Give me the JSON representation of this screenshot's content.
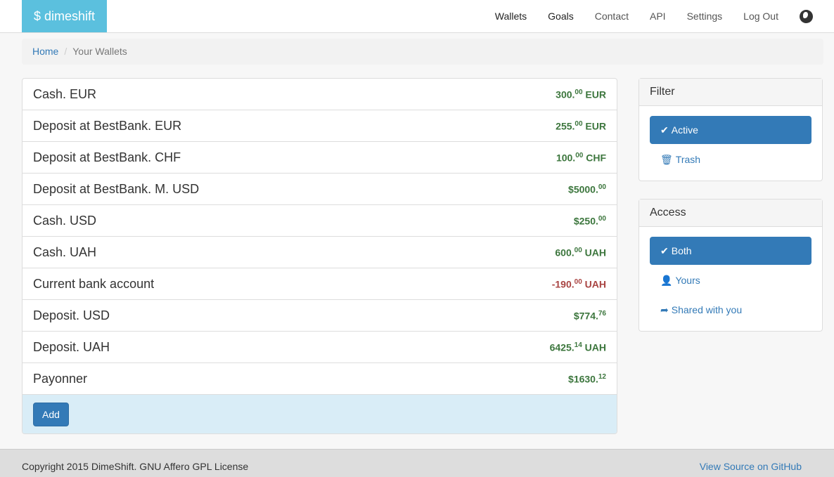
{
  "brand": "$ dimeshift",
  "nav": [
    "Wallets",
    "Goals",
    "Contact",
    "API",
    "Settings",
    "Log Out"
  ],
  "breadcrumb": {
    "home": "Home",
    "current": "Your Wallets"
  },
  "wallets": [
    {
      "name": "Cash. EUR",
      "pre": "",
      "int": "300.",
      "dec": "00",
      "cur": " EUR",
      "neg": false
    },
    {
      "name": "Deposit at BestBank. EUR",
      "pre": "",
      "int": "255.",
      "dec": "00",
      "cur": " EUR",
      "neg": false
    },
    {
      "name": "Deposit at BestBank. CHF",
      "pre": "",
      "int": "100.",
      "dec": "00",
      "cur": " CHF",
      "neg": false
    },
    {
      "name": "Deposit at BestBank. M. USD",
      "pre": "$",
      "int": "5000.",
      "dec": "00",
      "cur": "",
      "neg": false
    },
    {
      "name": "Cash. USD",
      "pre": "$",
      "int": "250.",
      "dec": "00",
      "cur": "",
      "neg": false
    },
    {
      "name": "Cash. UAH",
      "pre": "",
      "int": "600.",
      "dec": "00",
      "cur": " UAH",
      "neg": false
    },
    {
      "name": "Current bank account",
      "pre": "",
      "int": "-190.",
      "dec": "00",
      "cur": " UAH",
      "neg": true
    },
    {
      "name": "Deposit. USD",
      "pre": "$",
      "int": "774.",
      "dec": "76",
      "cur": "",
      "neg": false
    },
    {
      "name": "Deposit. UAH",
      "pre": "",
      "int": "6425.",
      "dec": "14",
      "cur": " UAH",
      "neg": false
    },
    {
      "name": "Payonner",
      "pre": "$",
      "int": "1630.",
      "dec": "12",
      "cur": "",
      "neg": false
    }
  ],
  "add_label": "Add",
  "filter": {
    "title": "Filter",
    "items": [
      {
        "label": "Active",
        "icon": "check-icon",
        "active": true
      },
      {
        "label": "Trash",
        "icon": "trash-icon",
        "active": false
      }
    ]
  },
  "access": {
    "title": "Access",
    "items": [
      {
        "label": "Both",
        "icon": "check-icon",
        "active": true
      },
      {
        "label": "Yours",
        "icon": "user-icon",
        "active": false
      },
      {
        "label": "Shared with you",
        "icon": "share-icon",
        "active": false
      }
    ]
  },
  "footer": {
    "copyright": "Copyright 2015 DimeShift. GNU Affero GPL License",
    "source": "View Source on GitHub"
  },
  "colors": {
    "positive": "#3c763d",
    "negative": "#a94442",
    "primary": "#337ab7",
    "brand": "#5bc0de"
  }
}
